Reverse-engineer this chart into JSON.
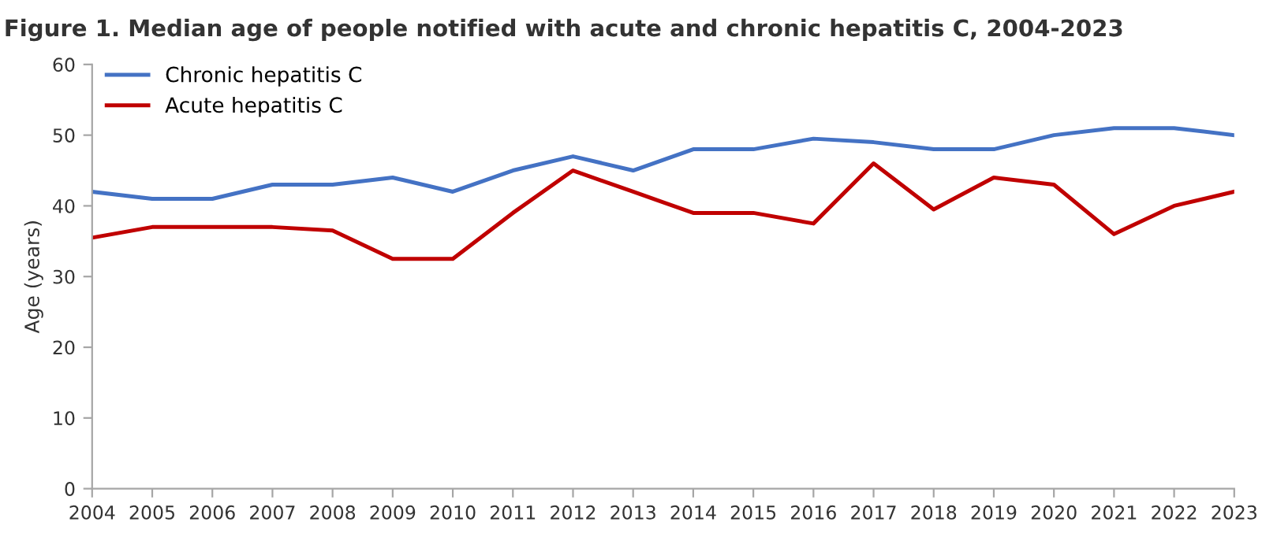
{
  "chart_data": {
    "type": "line",
    "title": "Figure 1. Median age of people notified with acute and chronic hepatitis C, 2004-2023",
    "ylabel": "Age (years)",
    "categories": [
      "2004",
      "2005",
      "2006",
      "2007",
      "2008",
      "2009",
      "2010",
      "2011",
      "2012",
      "2013",
      "2014",
      "2015",
      "2016",
      "2017",
      "2018",
      "2019",
      "2020",
      "2021",
      "2022",
      "2023"
    ],
    "series": [
      {
        "name": "Chronic hepatitis C",
        "color": "#4472c4",
        "values": [
          42,
          41,
          41,
          43,
          43,
          44,
          42,
          45,
          47,
          45,
          48,
          48,
          49.5,
          49,
          48,
          48,
          50,
          51,
          51,
          50
        ]
      },
      {
        "name": "Acute hepatitis C",
        "color": "#c00000",
        "values": [
          35.5,
          37,
          37,
          37,
          36.5,
          32.5,
          32.5,
          39,
          45,
          42,
          39,
          39,
          37.5,
          46,
          39.5,
          44,
          43,
          36,
          40,
          42
        ]
      }
    ],
    "ylim": [
      0,
      60
    ],
    "yticks": [
      0,
      10,
      20,
      30,
      40,
      50,
      60
    ],
    "grid": false,
    "legend": "top left",
    "marker": "none",
    "line_style": "solid"
  }
}
